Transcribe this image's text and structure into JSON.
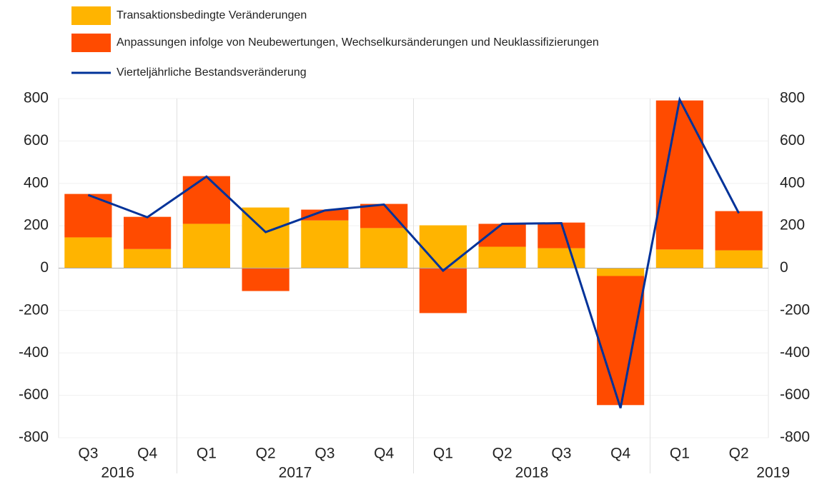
{
  "chart_data": {
    "type": "stacked_bar_line",
    "categories": [
      "Q3",
      "Q4",
      "Q1",
      "Q2",
      "Q3",
      "Q4",
      "Q1",
      "Q2",
      "Q3",
      "Q4",
      "Q1",
      "Q2"
    ],
    "year_groups": [
      {
        "label": "2016",
        "count": 2
      },
      {
        "label": "2017",
        "count": 4
      },
      {
        "label": "2018",
        "count": 4
      },
      {
        "label": "2019",
        "count": 2
      }
    ],
    "series": [
      {
        "name": "Transaktionsbedingte Veränderungen",
        "color": "#ffb400",
        "kind": "bar",
        "values": [
          145,
          90,
          209,
          286,
          225,
          189,
          202,
          101,
          94,
          -37,
          88,
          84
        ]
      },
      {
        "name": "Anpassungen infolge von Neubewertungen, Wechselkursänderungen und Neuklassifizierungen",
        "color": "#ff4b00",
        "kind": "bar",
        "values": [
          205,
          152,
          225,
          -108,
          51,
          114,
          -212,
          108,
          121,
          -609,
          703,
          185
        ]
      },
      {
        "name": "Vierteljährliche Bestandsveränderung",
        "color": "#003299",
        "kind": "line",
        "values": [
          345,
          240,
          432,
          170,
          272,
          300,
          -12,
          209,
          212,
          -660,
          795,
          259
        ]
      }
    ],
    "ylim": [
      -800,
      800
    ],
    "yticks": [
      -800,
      -600,
      -400,
      -200,
      0,
      200,
      400,
      600,
      800
    ],
    "y2lim": [
      -800,
      800
    ],
    "y2ticks": [
      -800,
      -600,
      -400,
      -200,
      0,
      200,
      400,
      600,
      800
    ],
    "grid": true
  }
}
